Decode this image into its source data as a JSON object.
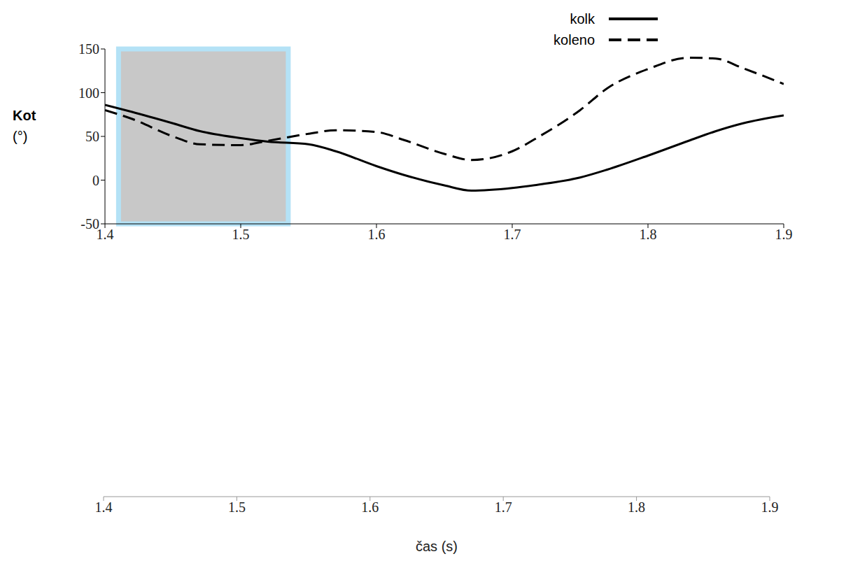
{
  "chart_data": {
    "type": "line",
    "ylabel": "Kot (°)",
    "xlabel": "čas (s)",
    "x": [
      1.4,
      1.42,
      1.45,
      1.47,
      1.5,
      1.52,
      1.55,
      1.57,
      1.6,
      1.62,
      1.65,
      1.67,
      1.7,
      1.72,
      1.75,
      1.77,
      1.8,
      1.83,
      1.85,
      1.87,
      1.9
    ],
    "series": [
      {
        "name": "kolk",
        "color": "#000000",
        "line_style": "solid",
        "values": [
          86,
          78,
          65,
          56,
          48,
          44,
          41,
          33,
          16,
          6,
          -6,
          -12,
          -9,
          -5,
          3,
          12,
          28,
          45,
          56,
          65,
          74
        ]
      },
      {
        "name": "koleno",
        "color": "#000000",
        "line_style": "dashed",
        "values": [
          80,
          70,
          50,
          41,
          40,
          45,
          53,
          57,
          55,
          46,
          30,
          23,
          33,
          50,
          80,
          105,
          127,
          140,
          139,
          128,
          110
        ]
      }
    ],
    "xlim": [
      1.4,
      1.9
    ],
    "ylim": [
      -50,
      150
    ],
    "xticks": [
      1.4,
      1.5,
      1.6,
      1.7,
      1.8,
      1.9
    ],
    "yticks": [
      -50,
      0,
      50,
      100,
      150
    ],
    "shaded_region": [
      1.41,
      1.535
    ],
    "legend": "top-right",
    "grid": false
  }
}
